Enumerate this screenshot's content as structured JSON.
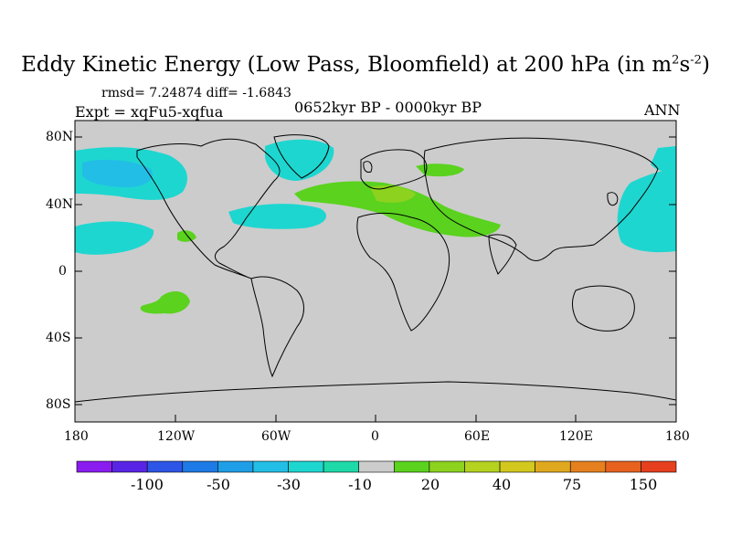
{
  "title": {
    "main": "Eddy Kinetic Energy (Low Pass, Bloomfield) at 200 hPa (in m",
    "sup1": "2",
    "mid": "s",
    "sup2": "-2",
    "end": ")"
  },
  "stats": "rmsd= 7.24874  diff= -1.6843",
  "experiment": "Expt = xqFu5-xqfua",
  "period": "0652kyr BP - 0000kyr BP",
  "season": "ANN",
  "lat_ticks": [
    "80N",
    "40N",
    "0",
    "40S",
    "80S"
  ],
  "lon_ticks": [
    "180",
    "120W",
    "60W",
    "0",
    "60E",
    "120E",
    "180"
  ],
  "colorbar": {
    "colors": [
      "#8a1cf0",
      "#5a24e6",
      "#2d55e6",
      "#1e7ae6",
      "#1e9ee6",
      "#22bee6",
      "#1ed6d0",
      "#1ed9a8",
      "#cccccc",
      "#5ad21e",
      "#8cd21e",
      "#b4d21e",
      "#d2c81e",
      "#e0a81e",
      "#e6801e",
      "#e6621e",
      "#e6401e"
    ],
    "labels": [
      "-100",
      "-50",
      "-30",
      "-10",
      "20",
      "40",
      "75",
      "150"
    ]
  },
  "colors": {
    "ocean_land_bg": "#cccccc",
    "cyan_light": "#1ed6d0",
    "cyan_mid": "#22bee6",
    "green": "#5ad21e",
    "green_yellow": "#8cd21e",
    "coast": "#000000"
  }
}
